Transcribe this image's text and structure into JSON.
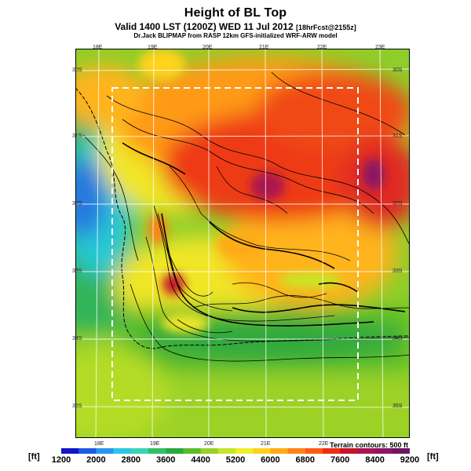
{
  "title": "Height of BL Top",
  "subtitle": "Valid 1400 LST (1200Z) WED 11 Jul 2012",
  "subtitle_small": "[18hrFcst@2155z]",
  "credit": "Dr.Jack BLIPMAP from RASP 12km GFS-initialized WRF-ARW model",
  "terrain_note": "Terrain contours: 500 ft",
  "unit_left": "[ft]",
  "unit_right": "[ft]",
  "lon_top": [
    "18E",
    "19E",
    "20E",
    "21E",
    "22E",
    "23E"
  ],
  "lon_bottom": [
    "18E",
    "19E",
    "20E",
    "21E",
    "22E"
  ],
  "lat_left": [
    "30S",
    "31S",
    "32S",
    "33S",
    "34S",
    "35S"
  ],
  "lat_right": [
    "30S",
    "31S",
    "32S",
    "33S",
    "34S",
    "35S"
  ],
  "colorbar": {
    "labels": [
      "1200",
      "2000",
      "2800",
      "3600",
      "4400",
      "5200",
      "6000",
      "6800",
      "7600",
      "8400",
      "9200"
    ],
    "colors": [
      "#1414c8",
      "#1e5ae6",
      "#2896f0",
      "#28c8e6",
      "#3cd2b4",
      "#32be64",
      "#28aa3c",
      "#5abe28",
      "#96d228",
      "#c8e628",
      "#f0f028",
      "#ffd21e",
      "#ffaa14",
      "#ff8214",
      "#ff5a14",
      "#ee2d14",
      "#c81428",
      "#aa1450",
      "#8c1464",
      "#6e1464"
    ]
  }
}
